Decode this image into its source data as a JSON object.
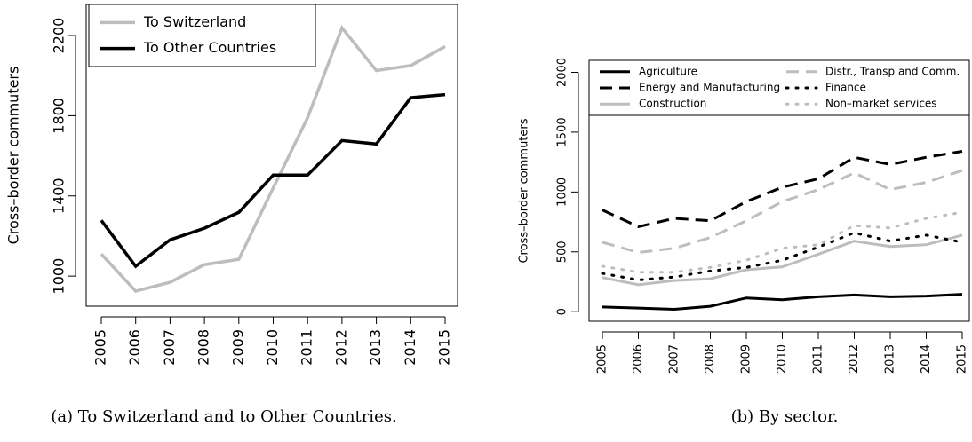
{
  "chart_data": [
    {
      "type": "line",
      "ylabel": "Cross–border commuters",
      "caption": "(a) To Switzerland and to Other Countries.",
      "categories": [
        "2005",
        "2006",
        "2007",
        "2008",
        "2009",
        "2010",
        "2011",
        "2012",
        "2013",
        "2014",
        "2015"
      ],
      "ylim": [
        850,
        2355
      ],
      "yticks": [
        1000,
        1400,
        1800,
        2200
      ],
      "legend": "topleft",
      "series": [
        {
          "name": "To Switzerland",
          "color": "#bdbdbd",
          "dash": "solid",
          "values": [
            1110,
            925,
            969,
            1057,
            1084,
            1440,
            1790,
            2238,
            2025,
            2050,
            2145
          ]
        },
        {
          "name": "To Other Countries",
          "color": "#000000",
          "dash": "solid",
          "values": [
            1278,
            1049,
            1181,
            1239,
            1318,
            1504,
            1504,
            1676,
            1659,
            1890,
            1905
          ]
        }
      ]
    },
    {
      "type": "line",
      "ylabel": "Cross–border commuters",
      "caption": "(b) By sector.",
      "categories": [
        "2005",
        "2006",
        "2007",
        "2008",
        "2009",
        "2010",
        "2011",
        "2012",
        "2013",
        "2014",
        "2015"
      ],
      "ylim": [
        -80,
        2100
      ],
      "yticks": [
        0,
        500,
        1000,
        1500,
        2000
      ],
      "legend": "top",
      "series": [
        {
          "name": "Agriculture",
          "color": "#000000",
          "dash": "solid",
          "values": [
            40,
            30,
            20,
            45,
            115,
            100,
            125,
            140,
            125,
            130,
            145
          ]
        },
        {
          "name": "Energy and Manufacturing",
          "color": "#000000",
          "dash": "dashed",
          "values": [
            850,
            710,
            780,
            760,
            920,
            1040,
            1110,
            1290,
            1230,
            1290,
            1340
          ]
        },
        {
          "name": "Construction",
          "color": "#bdbdbd",
          "dash": "solid",
          "values": [
            285,
            225,
            260,
            275,
            350,
            375,
            480,
            590,
            545,
            560,
            640
          ]
        },
        {
          "name": "Distr., Transp and Comm.",
          "color": "#bdbdbd",
          "dash": "dashed",
          "values": [
            580,
            495,
            530,
            620,
            760,
            920,
            1020,
            1160,
            1020,
            1080,
            1180
          ]
        },
        {
          "name": "Finance",
          "color": "#000000",
          "dash": "dotted",
          "values": [
            320,
            265,
            290,
            340,
            370,
            430,
            540,
            660,
            590,
            640,
            580
          ]
        },
        {
          "name": "Non–market services",
          "color": "#bdbdbd",
          "dash": "dotted",
          "values": [
            380,
            330,
            330,
            370,
            430,
            530,
            560,
            720,
            700,
            780,
            830
          ]
        }
      ]
    }
  ]
}
